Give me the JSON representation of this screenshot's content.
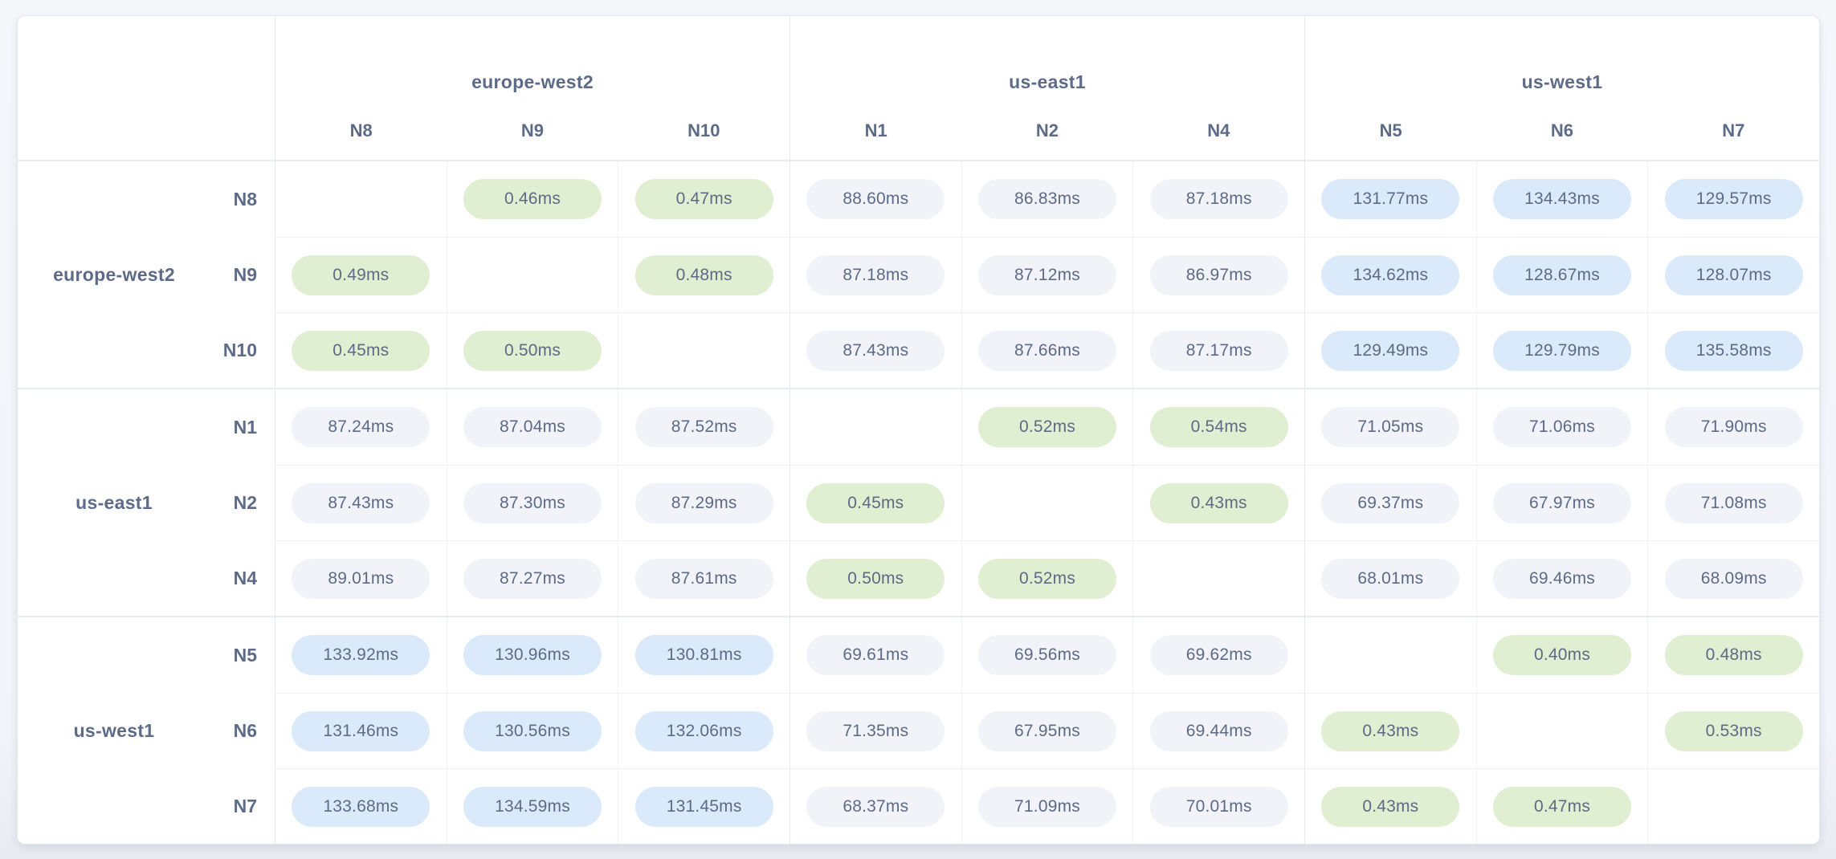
{
  "chart_data": {
    "type": "heatmap",
    "unit": "ms",
    "regions": [
      {
        "name": "europe-west2",
        "nodes": [
          "N8",
          "N9",
          "N10"
        ]
      },
      {
        "name": "us-east1",
        "nodes": [
          "N1",
          "N2",
          "N4"
        ]
      },
      {
        "name": "us-west1",
        "nodes": [
          "N5",
          "N6",
          "N7"
        ]
      }
    ],
    "rows": [
      "N8",
      "N9",
      "N10",
      "N1",
      "N2",
      "N4",
      "N5",
      "N6",
      "N7"
    ],
    "columns": [
      "N8",
      "N9",
      "N10",
      "N1",
      "N2",
      "N4",
      "N5",
      "N6",
      "N7"
    ],
    "values": [
      [
        null,
        0.46,
        0.47,
        88.6,
        86.83,
        87.18,
        131.77,
        134.43,
        129.57
      ],
      [
        0.49,
        null,
        0.48,
        87.18,
        87.12,
        86.97,
        134.62,
        128.67,
        128.07
      ],
      [
        0.45,
        0.5,
        null,
        87.43,
        87.66,
        87.17,
        129.49,
        129.79,
        135.58
      ],
      [
        87.24,
        87.04,
        87.52,
        null,
        0.52,
        0.54,
        71.05,
        71.06,
        71.9
      ],
      [
        87.43,
        87.3,
        87.29,
        0.45,
        null,
        0.43,
        69.37,
        67.97,
        71.08
      ],
      [
        89.01,
        87.27,
        87.61,
        0.5,
        0.52,
        null,
        68.01,
        69.46,
        68.09
      ],
      [
        133.92,
        130.96,
        130.81,
        69.61,
        69.56,
        69.62,
        null,
        0.4,
        0.48
      ],
      [
        131.46,
        130.56,
        132.06,
        71.35,
        67.95,
        69.44,
        0.43,
        null,
        0.53
      ],
      [
        133.68,
        134.59,
        131.45,
        68.37,
        71.09,
        70.01,
        0.43,
        0.47,
        null
      ]
    ]
  },
  "thresholds": {
    "low_below": 1,
    "high_at_least": 110
  },
  "theme": {
    "page_bg": "#f2f4f9",
    "card_bg": "#ffffff",
    "card_border": "#e3e7ef",
    "grid_line": "#edf0f5",
    "group_line": "#e4e8f0",
    "header_text": "#5d6b88",
    "text": "#5d6a85",
    "pill_low": "#e0eed2",
    "pill_mid": "#f1f3f9",
    "pill_high": "#dbeafa"
  }
}
